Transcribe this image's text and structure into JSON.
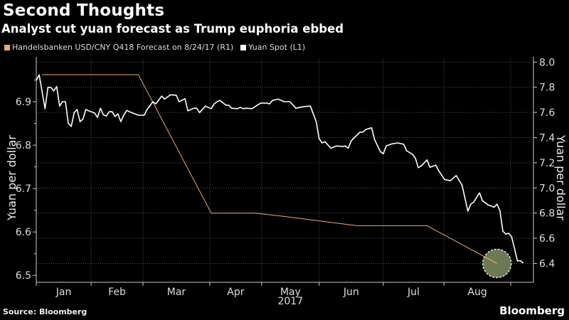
{
  "header": {
    "title": "Second Thoughts",
    "subtitle": "Analyst cut yuan forecast as Trump euphoria ebbed"
  },
  "footer": {
    "source": "Source: Bloomberg",
    "logo": "Bloomberg"
  },
  "chart_data": {
    "type": "line",
    "title": "Second Thoughts",
    "subtitle": "Analyst cut yuan forecast as Trump euphoria ebbed",
    "xlabel": "2017",
    "x_units": "trading days since start of 2017",
    "xlim": [
      0,
      170.5
    ],
    "month_ticks": [
      {
        "label": "Jan",
        "start": 0,
        "end": 18.8
      },
      {
        "label": "Feb",
        "start": 18.8,
        "end": 36.6
      },
      {
        "label": "Mar",
        "start": 36.6,
        "end": 59.5
      },
      {
        "label": "Apr",
        "start": 59.5,
        "end": 77.3
      },
      {
        "label": "May",
        "start": 77.3,
        "end": 97
      },
      {
        "label": "Jun",
        "start": 97,
        "end": 119
      },
      {
        "label": "Jul",
        "start": 119,
        "end": 139.8
      },
      {
        "label": "Aug",
        "start": 139.8,
        "end": 162.7
      }
    ],
    "year_label": "2017",
    "left_axis": {
      "label": "Yuan per dollar",
      "ylim": [
        6.484,
        7.0
      ],
      "ticks": [
        "6.5",
        "6.6",
        "6.7",
        "6.8",
        "6.9"
      ]
    },
    "right_axis": {
      "label": "Yuan per dollar",
      "ylim": [
        6.25,
        8.03
      ],
      "ticks": [
        "6.4",
        "6.6",
        "6.8",
        "7.0",
        "7.2",
        "7.4",
        "7.6",
        "7.8",
        "8.0"
      ]
    },
    "grid": true,
    "legend_position": "top-left",
    "series": [
      {
        "name": "Handelsbanken USD/CNY Q418 Forecast on 8/24/17 (R1)",
        "axis": "right",
        "color": "#f0a868",
        "x": [
          2,
          35,
          60,
          75,
          85,
          110,
          134,
          158
        ],
        "y": [
          7.9,
          7.9,
          6.8,
          6.8,
          6.773,
          6.7,
          6.7,
          6.4
        ]
      },
      {
        "name": "Yuan Spot (L1)",
        "axis": "left",
        "color": "#ffffff",
        "x": [
          0,
          1,
          3,
          4,
          5,
          6,
          7,
          8,
          9,
          10,
          11,
          12,
          13,
          14,
          15,
          16,
          17,
          18,
          20,
          21,
          22,
          23,
          24,
          25,
          26,
          27,
          28,
          29,
          30,
          31,
          33,
          35,
          37,
          38,
          40,
          41,
          43,
          44,
          46,
          48,
          49,
          51,
          52,
          54,
          55,
          56,
          58,
          60,
          61,
          62,
          63,
          65,
          66,
          67,
          69,
          70,
          71,
          72,
          74,
          76,
          77,
          79,
          80,
          81,
          83,
          85,
          87,
          89,
          92,
          94,
          96,
          97,
          98,
          99,
          101,
          103,
          105,
          106,
          107,
          108,
          111,
          112,
          113,
          115,
          116,
          118,
          119,
          120,
          122,
          124,
          126,
          127,
          129,
          130,
          131,
          132,
          134,
          135,
          137,
          138,
          140,
          142,
          144,
          146,
          148,
          149,
          150,
          152,
          153,
          155,
          157,
          158,
          159,
          160,
          161,
          162,
          163,
          164,
          165,
          166,
          167
        ],
        "y": [
          6.949,
          6.962,
          6.884,
          6.933,
          6.933,
          6.925,
          6.935,
          6.89,
          6.9,
          6.9,
          6.85,
          6.843,
          6.875,
          6.882,
          6.854,
          6.86,
          6.882,
          6.879,
          6.874,
          6.864,
          6.885,
          6.87,
          6.867,
          6.877,
          6.877,
          6.866,
          6.872,
          6.854,
          6.869,
          6.88,
          6.874,
          6.869,
          6.869,
          6.882,
          6.9,
          6.895,
          6.913,
          6.906,
          6.916,
          6.915,
          6.9,
          6.907,
          6.879,
          6.885,
          6.885,
          6.875,
          6.89,
          6.884,
          6.895,
          6.9,
          6.903,
          6.892,
          6.892,
          6.885,
          6.884,
          6.887,
          6.884,
          6.885,
          6.884,
          6.893,
          6.897,
          6.897,
          6.895,
          6.903,
          6.906,
          6.9,
          6.9,
          6.885,
          6.889,
          6.89,
          6.854,
          6.815,
          6.805,
          6.808,
          6.793,
          6.798,
          6.797,
          6.798,
          6.793,
          6.81,
          6.83,
          6.83,
          6.836,
          6.84,
          6.813,
          6.785,
          6.78,
          6.798,
          6.803,
          6.805,
          6.802,
          6.787,
          6.779,
          6.77,
          6.748,
          6.752,
          6.766,
          6.749,
          6.754,
          6.741,
          6.721,
          6.718,
          6.73,
          6.708,
          6.648,
          6.664,
          6.669,
          6.69,
          6.672,
          6.662,
          6.657,
          6.664,
          6.649,
          6.602,
          6.595,
          6.597,
          6.589,
          6.562,
          6.533,
          6.534,
          6.528
        ]
      }
    ],
    "annotation": {
      "type": "highlight-circle",
      "x": 158,
      "y": 6.4,
      "axis": "right",
      "color": "#6b7a55"
    }
  }
}
